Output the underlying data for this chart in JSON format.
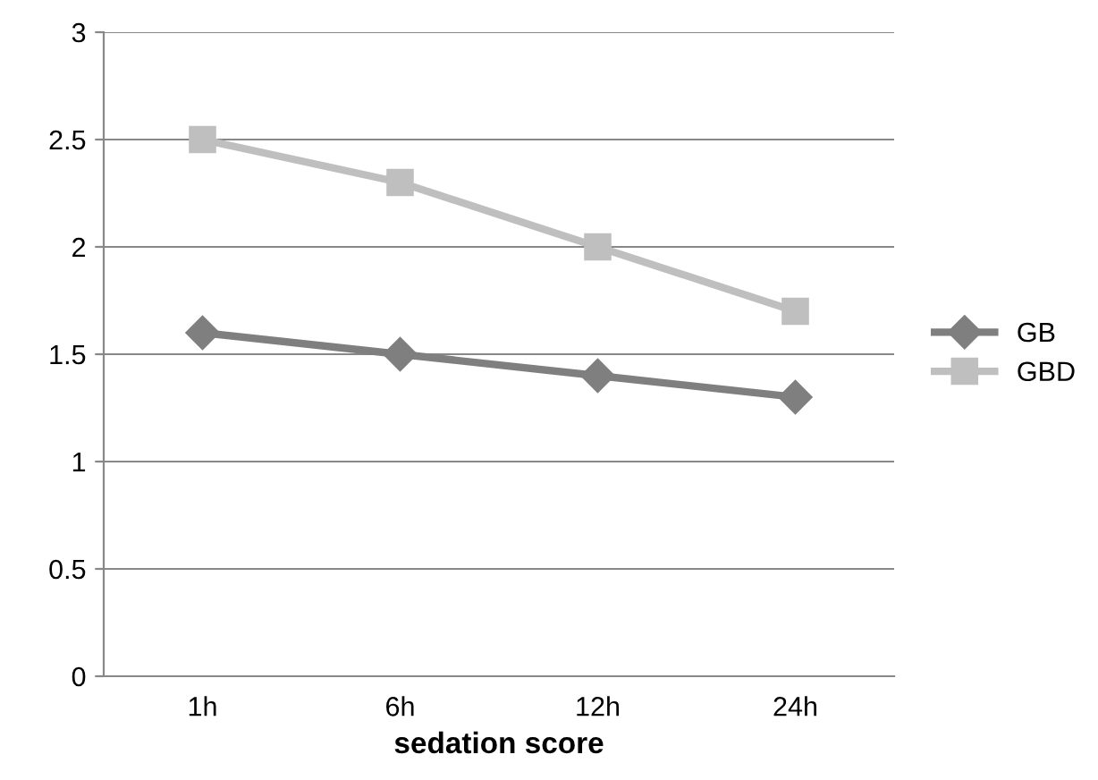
{
  "chart_data": {
    "type": "line",
    "xlabel": "sedation score",
    "categories": [
      "1h",
      "6h",
      "12h",
      "24h"
    ],
    "series": [
      {
        "name": "GB",
        "color": "#7f7f7f",
        "marker": "diamond",
        "values": [
          1.6,
          1.5,
          1.4,
          1.3
        ]
      },
      {
        "name": "GBD",
        "color": "#bfbfbf",
        "marker": "square",
        "values": [
          2.5,
          2.3,
          2.0,
          1.7
        ]
      }
    ],
    "ylim": [
      0,
      3
    ],
    "yticks": [
      0,
      0.5,
      1,
      1.5,
      2,
      2.5,
      3
    ],
    "grid": "y",
    "legend": "right",
    "line_style": "solid"
  }
}
